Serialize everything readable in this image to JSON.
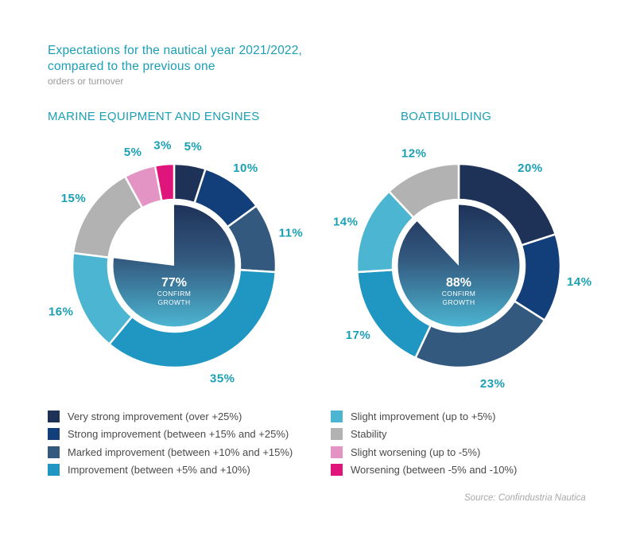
{
  "header": {
    "title_line1": "Expectations for the nautical year 2021/2022,",
    "title_line2": "compared to the previous one",
    "subtitle": "orders or turnover"
  },
  "colors": {
    "very_strong": "#1e3157",
    "strong": "#123f7a",
    "marked": "#33597f",
    "improvement": "#1f97c2",
    "slight_improvement": "#4cb6d2",
    "stability": "#b2b2b2",
    "slight_worsening": "#e494c4",
    "worsening": "#e0157c",
    "label": "#1aa0b4"
  },
  "legend": [
    {
      "key": "very_strong",
      "label": "Very strong improvement (over +25%)"
    },
    {
      "key": "strong",
      "label": "Strong improvement (between +15% and +25%)"
    },
    {
      "key": "marked",
      "label": "Marked improvement (between +10% and +15%)"
    },
    {
      "key": "improvement",
      "label": "Improvement (between +5% and +10%)"
    },
    {
      "key": "slight_improvement",
      "label": "Slight improvement (up to +5%)"
    },
    {
      "key": "stability",
      "label": "Stability"
    },
    {
      "key": "slight_worsening",
      "label": "Slight worsening (up to -5%)"
    },
    {
      "key": "worsening",
      "label": "Worsening (between -5% and -10%)"
    }
  ],
  "chart_data": [
    {
      "type": "pie",
      "title": "MARINE EQUIPMENT AND ENGINES",
      "categories": [
        "very_strong",
        "strong",
        "marked",
        "improvement",
        "slight_improvement",
        "stability",
        "slight_worsening",
        "worsening"
      ],
      "values": [
        5,
        10,
        11,
        35,
        16,
        15,
        5,
        3
      ],
      "value_labels": [
        "5%",
        "10%",
        "11%",
        "35%",
        "16%",
        "15%",
        "5%",
        "3%"
      ],
      "center_value": "77%",
      "center_label_line1": "CONFIRM",
      "center_label_line2": "GROWTH"
    },
    {
      "type": "pie",
      "title": "BOATBUILDING",
      "categories": [
        "very_strong",
        "strong",
        "marked",
        "improvement",
        "slight_improvement",
        "stability"
      ],
      "values": [
        20,
        14,
        23,
        17,
        14,
        12
      ],
      "value_labels": [
        "20%",
        "14%",
        "23%",
        "17%",
        "14%",
        "12%"
      ],
      "center_value": "88%",
      "center_label_line1": "CONFIRM",
      "center_label_line2": "GROWTH"
    }
  ],
  "source": "Source: Confindustria Nautica"
}
